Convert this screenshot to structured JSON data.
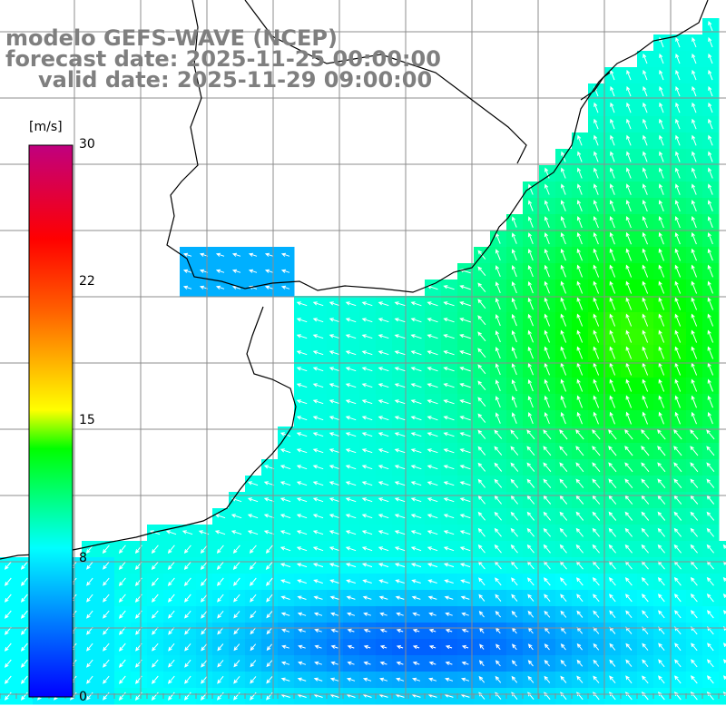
{
  "titles": {
    "line1": "modelo GEFS-WAVE (NCEP)",
    "line2": "forecast date: 2025-11-25 00:00:00",
    "line3": "valid date: 2025-11-29 09:00:00"
  },
  "colorbar": {
    "unit": "[m/s]",
    "min": 0,
    "max": 30,
    "tick_labels": [
      "30",
      "22",
      "15",
      "8",
      "0"
    ],
    "tick_values": [
      30,
      22,
      15,
      8,
      0
    ],
    "colors": [
      "#0000ff",
      "#00b0ff",
      "#00ffff",
      "#00ff00",
      "#ffff00",
      "#ff8000",
      "#ff0000",
      "#c0007f"
    ]
  },
  "chart_data": {
    "type": "heatmap",
    "quantity": "wind speed with direction arrows",
    "units": "m/s",
    "value_range": [
      0,
      30
    ],
    "typical_values": {
      "open_ocean_northeast": 12,
      "central_ocean": 9,
      "southern_band": 3,
      "southwest_coast": 8
    }
  }
}
